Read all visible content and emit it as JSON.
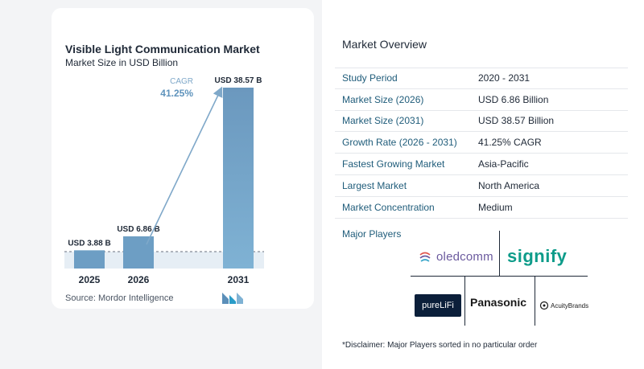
{
  "chart_data": {
    "type": "bar",
    "title": "Visible Light Communication Market",
    "subtitle": "Market Size in USD Billion",
    "categories": [
      "2025",
      "2026",
      "2031"
    ],
    "values": [
      3.88,
      6.86,
      38.57
    ],
    "data_labels": [
      "USD 3.88 B",
      "USD 6.86 B",
      "USD 38.57 B"
    ],
    "cagr_label": "CAGR",
    "cagr_value": "41.25%",
    "ylim": [
      0,
      40
    ],
    "bar_color": "#6d9ec4",
    "accent_color": "#7fa8c9"
  },
  "source": "Source:  Mordor Intelligence",
  "overview": {
    "title": "Market Overview",
    "rows": [
      {
        "key": "Study Period",
        "value": "2020 - 2031"
      },
      {
        "key": "Market Size (2026)",
        "value": "USD 6.86 Billion"
      },
      {
        "key": "Market Size (2031)",
        "value": "USD 38.57 Billion"
      },
      {
        "key": "Growth Rate (2026 - 2031)",
        "value": "41.25% CAGR"
      },
      {
        "key": "Fastest Growing Market",
        "value": "Asia-Pacific"
      },
      {
        "key": "Largest Market",
        "value": "North America"
      },
      {
        "key": "Market Concentration",
        "value": "Medium"
      }
    ]
  },
  "players": {
    "title": "Major Players",
    "logos": [
      "oledcomm",
      "signify",
      "pureLiFi",
      "Panasonic",
      "AcuityBrands"
    ]
  },
  "disclaimer": "*Disclaimer: Major Players sorted in no particular order"
}
